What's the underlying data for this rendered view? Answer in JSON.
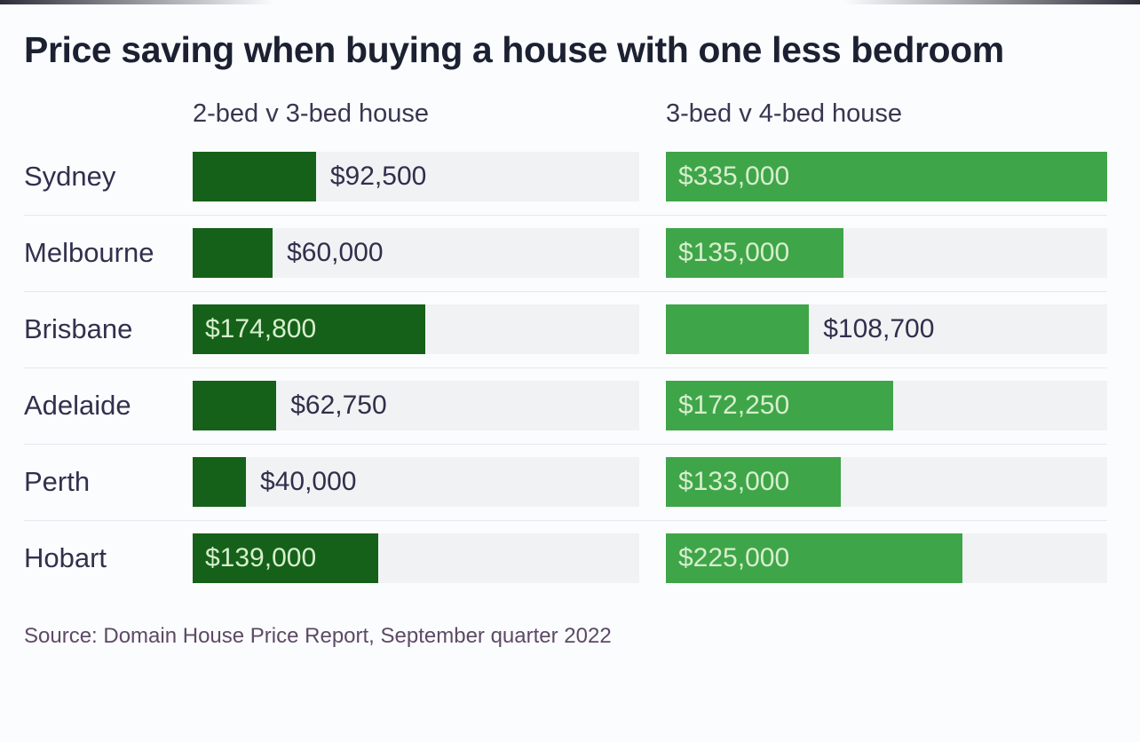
{
  "title": "Price saving when buying a house with one less bedroom",
  "source": "Source: Domain House Price Report, September quarter 2022",
  "colors": {
    "series1_bar": "#156119",
    "series2_bar": "#3fa549",
    "label_inside": "#d7efcd",
    "label_outside": "#322e4b",
    "track": "#f1f2f4",
    "city_label": "#33304d",
    "header_text": "#3a3550",
    "title_text": "#1c2132",
    "source_text": "#5d4a66"
  },
  "chart_data": {
    "type": "bar",
    "orientation": "horizontal",
    "title": "Price saving when buying a house with one less bedroom",
    "categories": [
      "Sydney",
      "Melbourne",
      "Brisbane",
      "Adelaide",
      "Perth",
      "Hobart"
    ],
    "series": [
      {
        "name": "2-bed v 3-bed house",
        "values": [
          92500,
          60000,
          174800,
          62750,
          40000,
          139000
        ],
        "labels": [
          "$92,500",
          "$60,000",
          "$174,800",
          "$62,750",
          "$40,000",
          "$139,000"
        ]
      },
      {
        "name": "3-bed v 4-bed house",
        "values": [
          335000,
          135000,
          108700,
          172250,
          133000,
          225000
        ],
        "labels": [
          "$335,000",
          "$135,000",
          "$108,700",
          "$172,250",
          "$133,000",
          "$225,000"
        ]
      }
    ],
    "xlim": [
      0,
      335000
    ],
    "grid": false,
    "legend_position": "column-headers-top"
  }
}
